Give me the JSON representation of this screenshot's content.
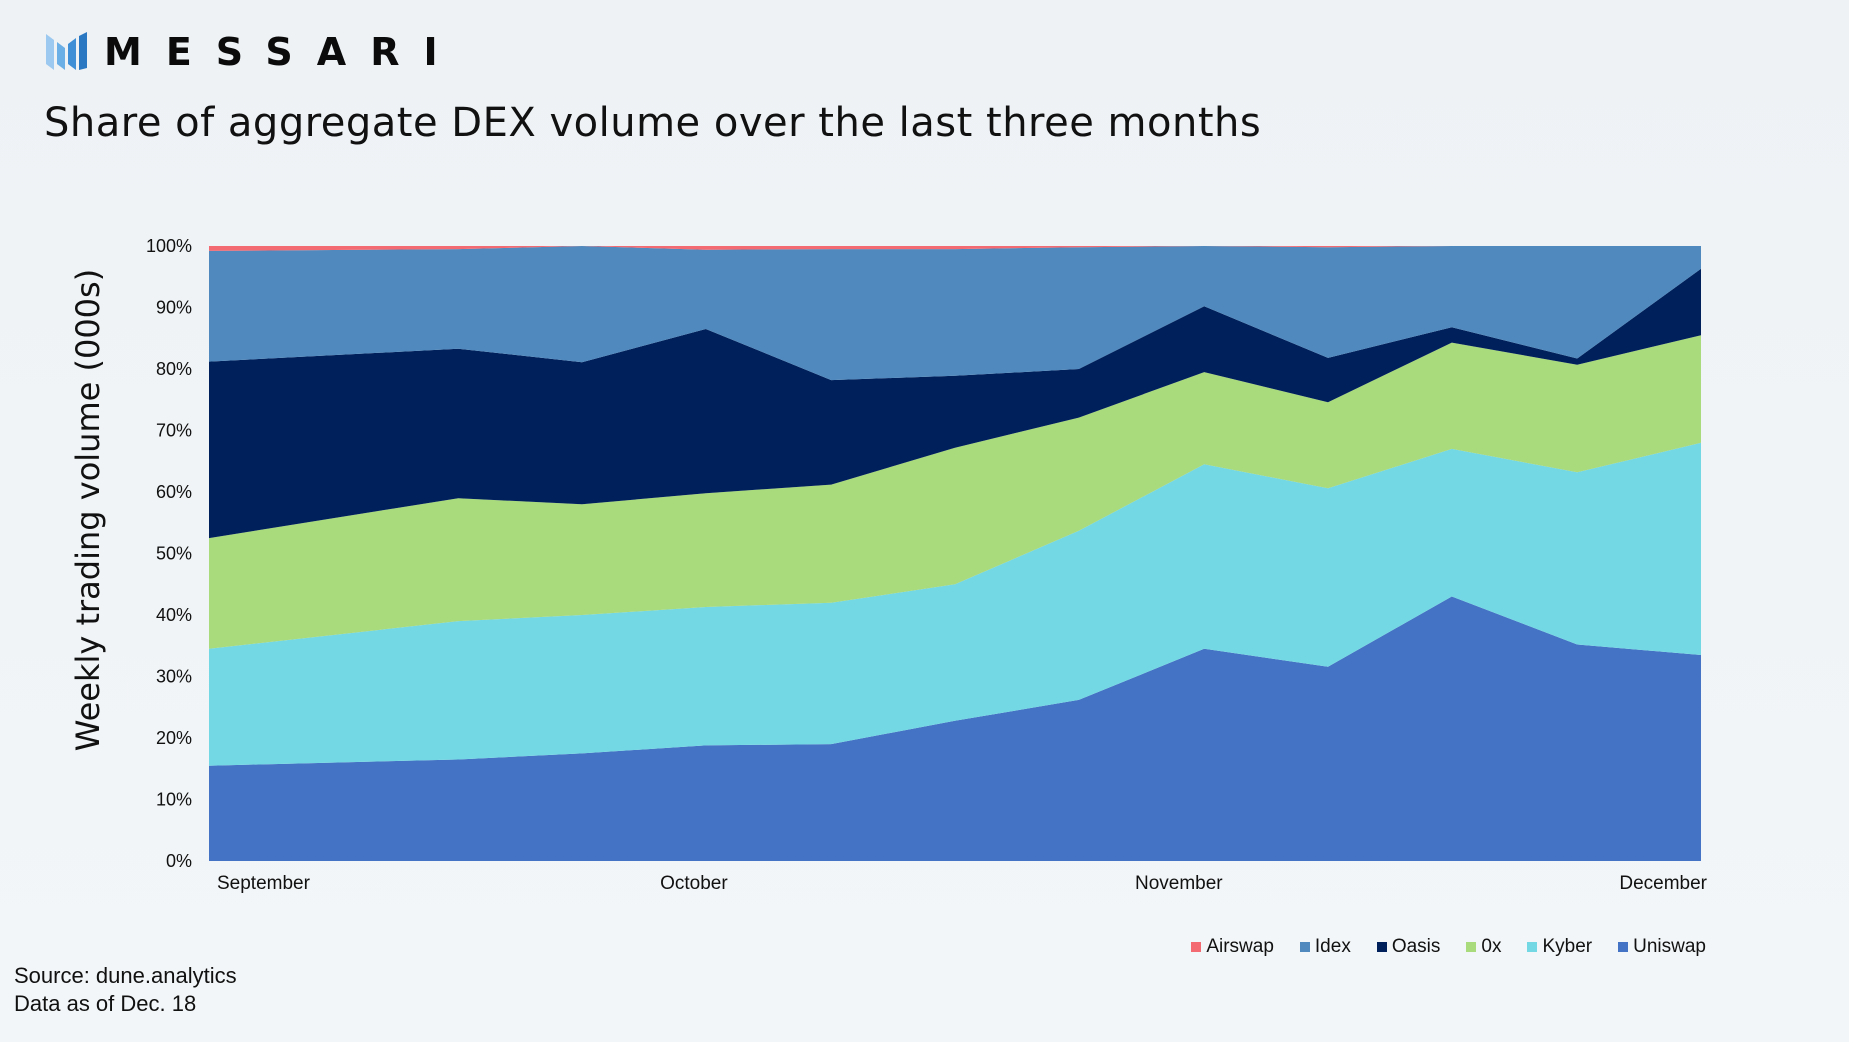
{
  "header": {
    "brand": "MESSARI",
    "title": "Share of aggregate DEX volume over the last three months"
  },
  "footer": {
    "source": "Source: dune.analytics",
    "asof": "Data as of Dec. 18"
  },
  "colors": {
    "Uniswap": "#4472c4",
    "Kyber": "#74d8e4",
    "0x": "#a9da7c",
    "Oasis": "#00205c",
    "Idex": "#5089bd",
    "Airswap": "#f46a73"
  },
  "chart_data": {
    "type": "area",
    "stacked": true,
    "ylabel": "Weekly trading volume (000s)",
    "xlabel": "",
    "ylim": [
      0,
      100
    ],
    "y_ticks": [
      "0%",
      "10%",
      "20%",
      "30%",
      "40%",
      "50%",
      "60%",
      "70%",
      "80%",
      "90%",
      "100%"
    ],
    "x_tick_labels": [
      {
        "label": "September",
        "at": 0
      },
      {
        "label": "October",
        "at": 3.25
      },
      {
        "label": "November",
        "at": 6.5
      },
      {
        "label": "December",
        "at": 10
      }
    ],
    "x": [
      0,
      1.67,
      2.5,
      3.33,
      4.17,
      5,
      5.83,
      6.67,
      7.5,
      8.33,
      9.17,
      10
    ],
    "series": [
      {
        "name": "Uniswap",
        "values": [
          15.5,
          16.5,
          17.5,
          18.8,
          19.0,
          22.8,
          26.2,
          34.5,
          31.6,
          43.0,
          35.2,
          33.5
        ]
      },
      {
        "name": "Kyber",
        "values": [
          19.0,
          22.5,
          22.5,
          22.5,
          23.0,
          22.2,
          27.5,
          30.0,
          29.0,
          24.0,
          28.0,
          34.5
        ]
      },
      {
        "name": "0x",
        "values": [
          18.0,
          20.0,
          18.0,
          18.5,
          19.2,
          22.2,
          18.4,
          15.0,
          14.0,
          17.3,
          17.5,
          17.5
        ]
      },
      {
        "name": "Oasis",
        "values": [
          28.7,
          24.3,
          23.1,
          26.7,
          17.0,
          11.7,
          7.9,
          10.7,
          7.2,
          2.5,
          1.0,
          10.8
        ]
      },
      {
        "name": "Idex",
        "values": [
          18.0,
          16.2,
          18.9,
          12.9,
          21.3,
          20.6,
          19.8,
          9.8,
          18.0,
          13.2,
          18.3,
          3.7
        ]
      },
      {
        "name": "Airswap",
        "values": [
          0.8,
          0.5,
          0.0,
          0.6,
          0.5,
          0.5,
          0.2,
          0.0,
          0.2,
          0.0,
          0.0,
          0.0
        ]
      }
    ],
    "legend": {
      "placement": "bottom-right",
      "order": [
        "Airswap",
        "Idex",
        "Oasis",
        "0x",
        "Kyber",
        "Uniswap"
      ]
    }
  }
}
